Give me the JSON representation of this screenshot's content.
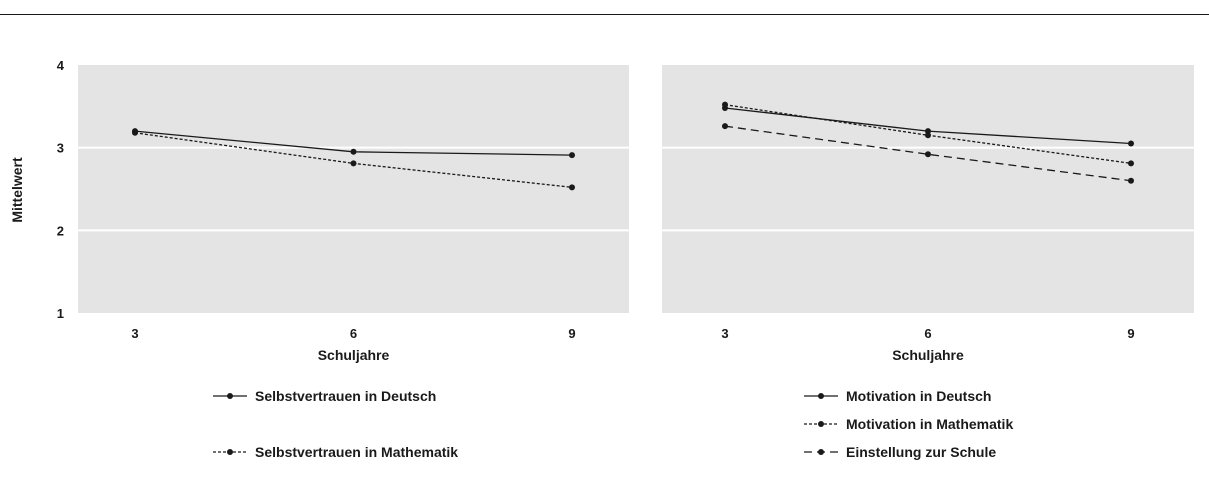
{
  "colors": {
    "plot_bg": "#e4e4e5",
    "gridline": "#ffffff",
    "series": "#1a1a1a"
  },
  "chart_data": [
    {
      "type": "line",
      "xlabel": "Schuljahre",
      "ylabel": "Mittelwert",
      "x": [
        3,
        6,
        9
      ],
      "ylim": [
        1,
        4
      ],
      "yticks": [
        1,
        2,
        3,
        4
      ],
      "grid": true,
      "legend_position": "bottom",
      "series": [
        {
          "name": "Selbstvertrauen in Deutsch",
          "dash": "solid",
          "values": [
            3.2,
            2.95,
            2.91
          ]
        },
        {
          "name": "Selbstvertrauen in Mathematik",
          "dash": "dotted",
          "values": [
            3.18,
            2.81,
            2.52
          ]
        }
      ]
    },
    {
      "type": "line",
      "xlabel": "Schuljahre",
      "ylabel": "",
      "x": [
        3,
        6,
        9
      ],
      "ylim": [
        1,
        4
      ],
      "yticks": [
        1,
        2,
        3,
        4
      ],
      "grid": true,
      "legend_position": "bottom",
      "series": [
        {
          "name": "Motivation in Deutsch",
          "dash": "solid",
          "values": [
            3.48,
            3.2,
            3.05
          ]
        },
        {
          "name": "Motivation in Mathematik",
          "dash": "dotted",
          "values": [
            3.52,
            3.15,
            2.81
          ]
        },
        {
          "name": "Einstellung zur Schule",
          "dash": "dashed",
          "values": [
            3.26,
            2.92,
            2.6
          ]
        }
      ]
    }
  ]
}
